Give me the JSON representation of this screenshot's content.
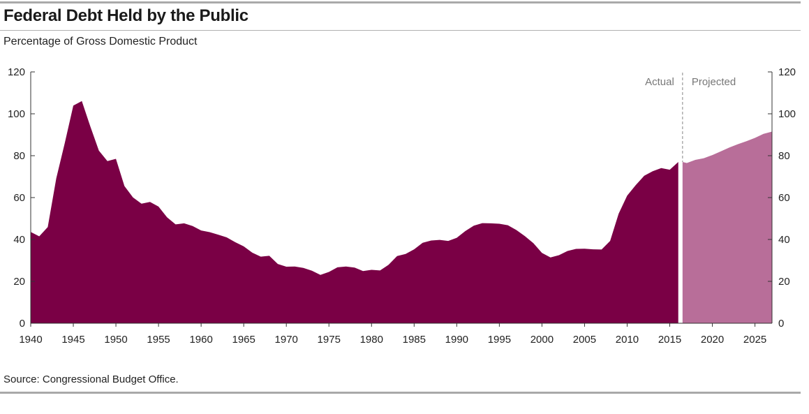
{
  "title": "Federal Debt Held by the Public",
  "subtitle": "Percentage of Gross Domestic Product",
  "source": "Source: Congressional Budget Office.",
  "colors": {
    "actual": "#7a0045",
    "projected": "#b86e99",
    "divider": "#999999",
    "axis": "#333333"
  },
  "chart_data": {
    "type": "area",
    "title": "Federal Debt Held by the Public",
    "ylabel": "Percentage of Gross Domestic Product",
    "xlabel": "",
    "xlim": [
      1940,
      2027
    ],
    "ylim": [
      0,
      120
    ],
    "yticks": [
      0,
      20,
      40,
      60,
      80,
      100,
      120
    ],
    "xticks": [
      1940,
      1945,
      1950,
      1955,
      1960,
      1965,
      1970,
      1975,
      1980,
      1985,
      1990,
      1995,
      2000,
      2005,
      2010,
      2015,
      2020,
      2025
    ],
    "divider_year": 2016.5,
    "annotations": {
      "actual": "Actual",
      "projected": "Projected"
    },
    "series": [
      {
        "name": "Actual",
        "x": [
          1940,
          1941,
          1942,
          1943,
          1944,
          1945,
          1946,
          1947,
          1948,
          1949,
          1950,
          1951,
          1952,
          1953,
          1954,
          1955,
          1956,
          1957,
          1958,
          1959,
          1960,
          1961,
          1962,
          1963,
          1964,
          1965,
          1966,
          1967,
          1968,
          1969,
          1970,
          1971,
          1972,
          1973,
          1974,
          1975,
          1976,
          1977,
          1978,
          1979,
          1980,
          1981,
          1982,
          1983,
          1984,
          1985,
          1986,
          1987,
          1988,
          1989,
          1990,
          1991,
          1992,
          1993,
          1994,
          1995,
          1996,
          1997,
          1998,
          1999,
          2000,
          2001,
          2002,
          2003,
          2004,
          2005,
          2006,
          2007,
          2008,
          2009,
          2010,
          2011,
          2012,
          2013,
          2014,
          2015,
          2016
        ],
        "values": [
          43.6,
          41.5,
          45.9,
          69.2,
          86.1,
          103.9,
          106.1,
          93.9,
          82.4,
          77.4,
          78.5,
          65.5,
          60.1,
          57.1,
          57.9,
          55.7,
          50.6,
          47.2,
          47.7,
          46.4,
          44.3,
          43.5,
          42.3,
          41.0,
          38.7,
          36.7,
          33.7,
          31.8,
          32.2,
          28.3,
          27.0,
          27.1,
          26.4,
          25.1,
          23.1,
          24.5,
          26.7,
          27.1,
          26.6,
          24.9,
          25.5,
          25.2,
          27.9,
          32.1,
          33.1,
          35.3,
          38.4,
          39.5,
          39.8,
          39.3,
          40.8,
          44.0,
          46.6,
          47.8,
          47.7,
          47.5,
          46.8,
          44.5,
          41.6,
          38.2,
          33.6,
          31.4,
          32.5,
          34.5,
          35.5,
          35.6,
          35.3,
          35.2,
          39.3,
          52.3,
          60.9,
          65.9,
          70.4,
          72.6,
          74.1,
          73.3,
          77.0
        ]
      },
      {
        "name": "Projected",
        "x": [
          2016.5,
          2017,
          2018,
          2019,
          2020,
          2021,
          2022,
          2023,
          2024,
          2025,
          2026,
          2027
        ],
        "values": [
          77.0,
          76.5,
          78.0,
          78.8,
          80.3,
          82.1,
          83.9,
          85.5,
          86.9,
          88.5,
          90.4,
          91.5
        ]
      }
    ]
  }
}
